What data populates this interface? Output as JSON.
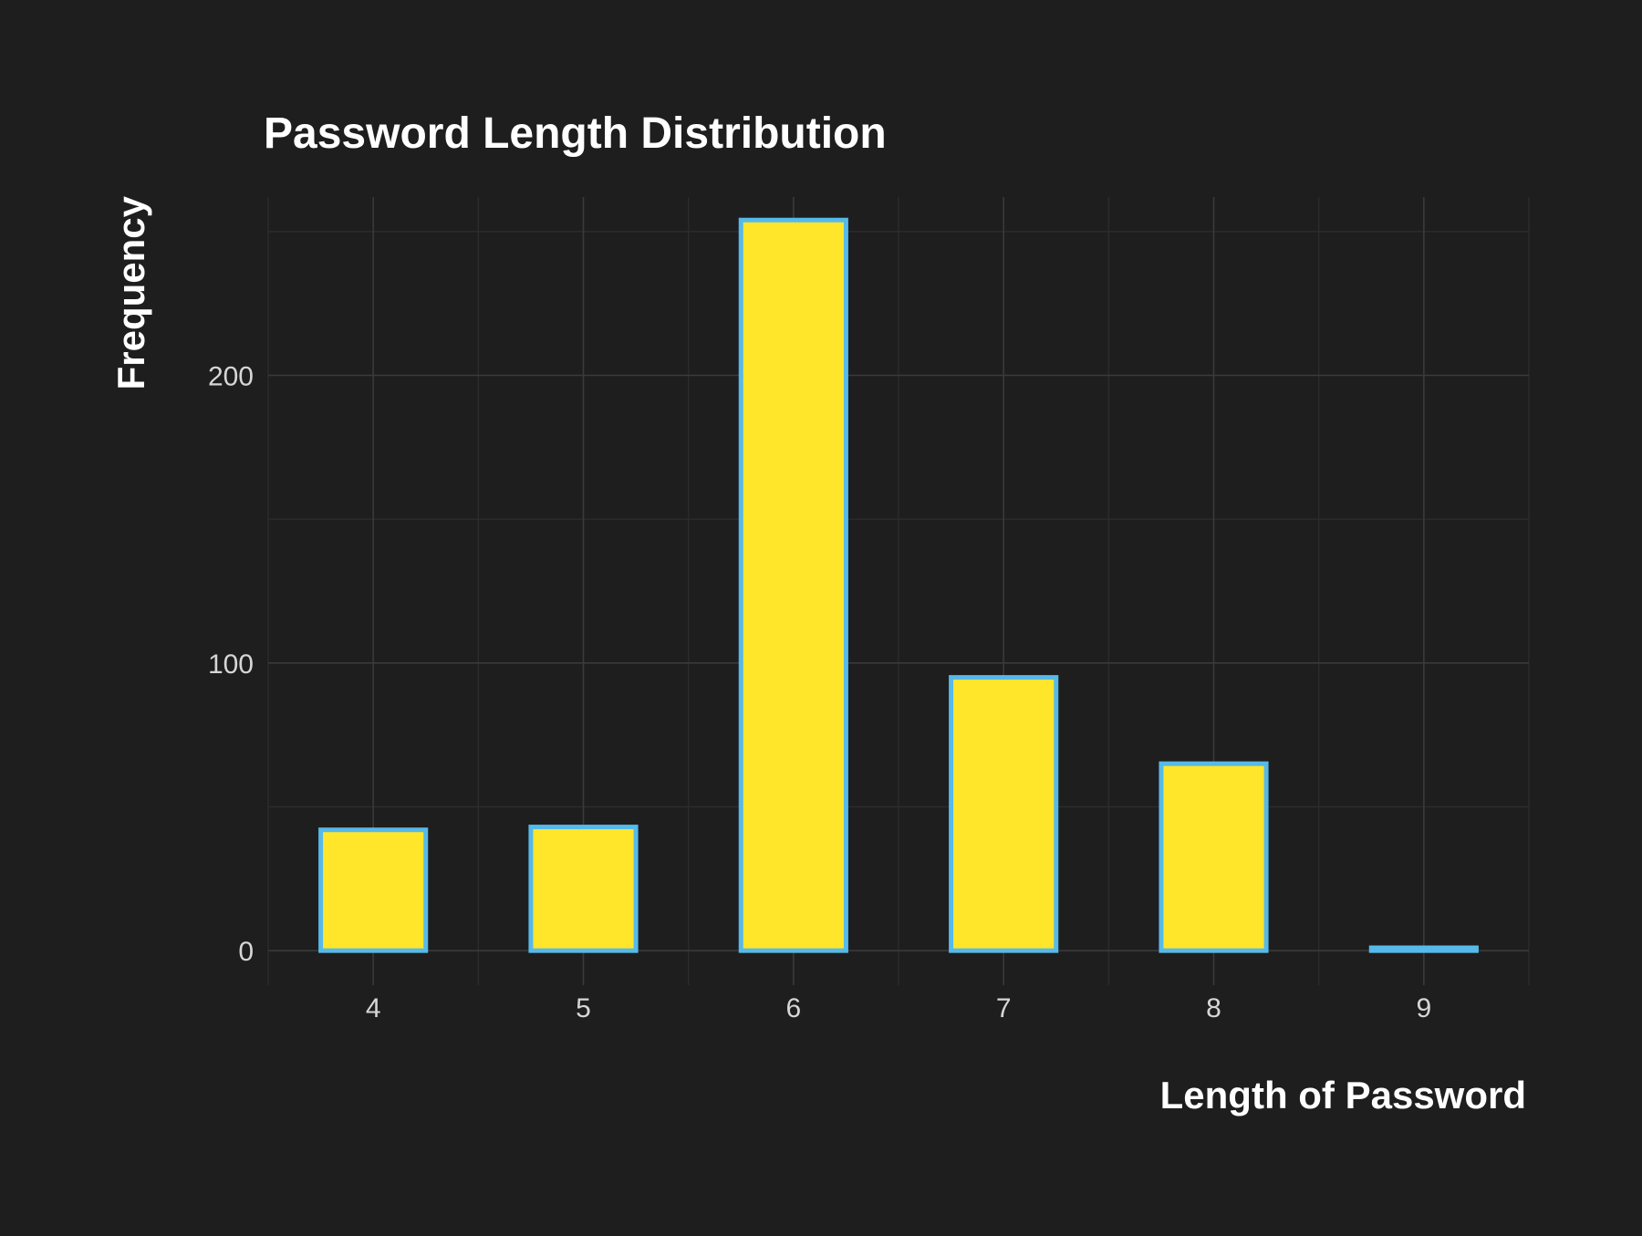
{
  "chart_data": {
    "type": "bar",
    "title": "Password Length Distribution",
    "xlabel": "Length of Password",
    "ylabel": "Frequency",
    "x_ticks": [
      "4",
      "5",
      "6",
      "7",
      "8",
      "9"
    ],
    "y_ticks": [
      "0",
      "100",
      "200"
    ],
    "bins": [
      {
        "label": "4",
        "start": 3.75,
        "end": 4.25,
        "value": 42
      },
      {
        "label": "",
        "start": 4.25,
        "end": 4.75,
        "value": 0
      },
      {
        "label": "5",
        "start": 4.75,
        "end": 5.25,
        "value": 43
      },
      {
        "label": "",
        "start": 5.25,
        "end": 5.75,
        "value": 0
      },
      {
        "label": "6",
        "start": 5.75,
        "end": 6.25,
        "value": 254
      },
      {
        "label": "",
        "start": 6.25,
        "end": 6.75,
        "value": 0
      },
      {
        "label": "7",
        "start": 6.75,
        "end": 7.25,
        "value": 95
      },
      {
        "label": "",
        "start": 7.25,
        "end": 7.75,
        "value": 0
      },
      {
        "label": "8",
        "start": 7.75,
        "end": 8.25,
        "value": 65
      },
      {
        "label": "",
        "start": 8.25,
        "end": 8.75,
        "value": 0
      },
      {
        "label": "9",
        "start": 8.75,
        "end": 9.25,
        "value": 1
      }
    ],
    "xlim": [
      3.5,
      9.5
    ],
    "ylim": [
      -12,
      262
    ],
    "grid": true,
    "legend": "none",
    "colors": {
      "background": "#1e1e1e",
      "bar_fill": "#ffe62a",
      "bar_outline": "#56b9e9",
      "grid_major": "#3a3a3a",
      "grid_minor": "#2e2e2e",
      "text": "#ffffff",
      "tick_text": "#d6d6d6"
    }
  }
}
